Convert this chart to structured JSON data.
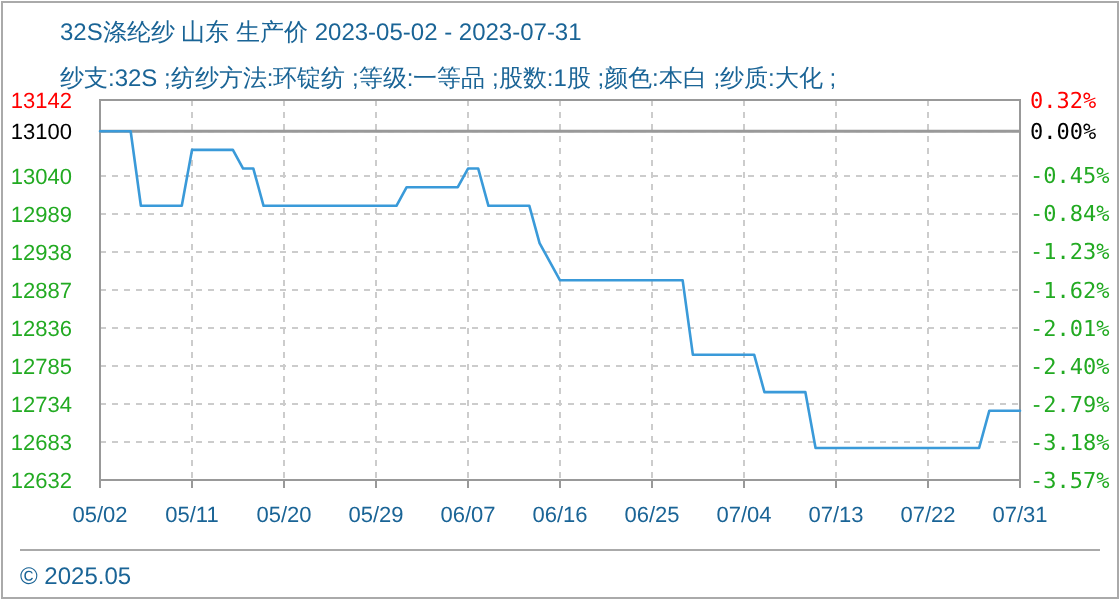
{
  "chart_data": {
    "type": "line",
    "title": "32S涤纶纱 山东 生产价 2023-05-02 - 2023-07-31",
    "subtitle": "纱支:32S ;纺纱方法:环锭纺 ;等级:一等品 ;股数:1股 ;颜色:本白 ;纱质:大化 ;",
    "annotations": [
      "© 2025.05"
    ],
    "series": [
      {
        "color": "#3a9ad9",
        "x": [
          "2023-05-02",
          "2023-05-05",
          "2023-05-06",
          "2023-05-10",
          "2023-05-11",
          "2023-05-15",
          "2023-05-16",
          "2023-05-17",
          "2023-05-18",
          "2023-05-31",
          "2023-06-01",
          "2023-06-06",
          "2023-06-07",
          "2023-06-08",
          "2023-06-09",
          "2023-06-13",
          "2023-06-14",
          "2023-06-16",
          "2023-06-28",
          "2023-06-29",
          "2023-07-05",
          "2023-07-06",
          "2023-07-10",
          "2023-07-11",
          "2023-07-27",
          "2023-07-28",
          "2023-07-31"
        ],
        "values": [
          13100,
          13100,
          13000,
          13000,
          13075,
          13075,
          13050,
          13050,
          13000,
          13000,
          13025,
          13025,
          13050,
          13050,
          13000,
          13000,
          12950,
          12900,
          12900,
          12800,
          12800,
          12750,
          12750,
          12675,
          12675,
          12725,
          12725
        ]
      }
    ],
    "xlim": [
      "2023-05-02",
      "2023-07-31"
    ],
    "xticks": [
      {
        "value": "2023-05-02",
        "label": "05/02"
      },
      {
        "value": "2023-05-11",
        "label": "05/11"
      },
      {
        "value": "2023-05-20",
        "label": "05/20"
      },
      {
        "value": "2023-05-29",
        "label": "05/29"
      },
      {
        "value": "2023-06-07",
        "label": "06/07"
      },
      {
        "value": "2023-06-16",
        "label": "06/16"
      },
      {
        "value": "2023-06-25",
        "label": "06/25"
      },
      {
        "value": "2023-07-04",
        "label": "07/04"
      },
      {
        "value": "2023-07-13",
        "label": "07/13"
      },
      {
        "value": "2023-07-22",
        "label": "07/22"
      },
      {
        "value": "2023-07-31",
        "label": "07/31"
      }
    ],
    "ylim": [
      12632,
      13142
    ],
    "yticks": [
      12632,
      12683,
      12734,
      12785,
      12836,
      12887,
      12938,
      12989,
      13040,
      13100,
      13142
    ],
    "y2lim": [
      -3.57,
      0.32
    ],
    "y2ticks": [
      {
        "value": -3.57,
        "label": "-3.57%"
      },
      {
        "value": -3.18,
        "label": "-3.18%"
      },
      {
        "value": -2.79,
        "label": "-2.79%"
      },
      {
        "value": -2.4,
        "label": "-2.40%"
      },
      {
        "value": -2.01,
        "label": "-2.01%"
      },
      {
        "value": -1.62,
        "label": "-1.62%"
      },
      {
        "value": -1.23,
        "label": "-1.23%"
      },
      {
        "value": -0.84,
        "label": "-0.84%"
      },
      {
        "value": -0.45,
        "label": "-0.45%"
      },
      {
        "value": 0,
        "label": "0.00%"
      },
      {
        "value": 0.32,
        "label": "0.32%"
      }
    ],
    "ref_lines": [
      {
        "axis": "y",
        "value": 13100,
        "color": "#999999"
      }
    ],
    "grid": true,
    "marker": "none",
    "line_style": "solid"
  }
}
